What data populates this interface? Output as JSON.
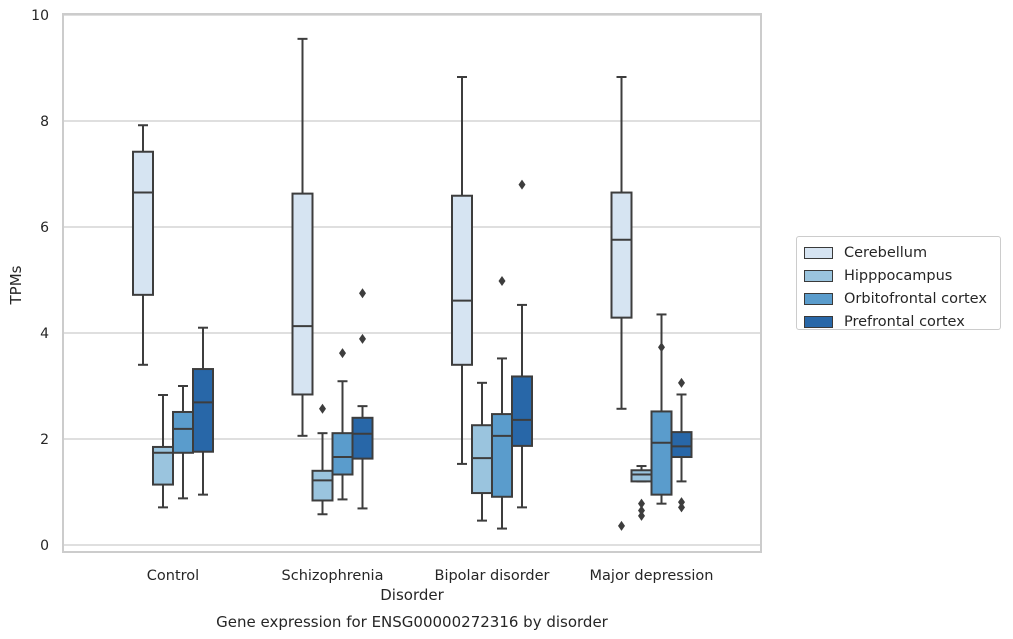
{
  "chart_data": {
    "type": "box",
    "title": "Gene expression for ENSG00000272316 by disorder",
    "xlabel": "Disorder",
    "ylabel": "TPMs",
    "ylim": [
      -0.15,
      10.05
    ],
    "y_ticks": [
      "0",
      "2",
      "4",
      "6",
      "8",
      "10"
    ],
    "categories": [
      "Control",
      "Schizophrenia",
      "Bipolar disorder",
      "Major depression"
    ],
    "grid": "horizontal",
    "legend_position": "right",
    "series": [
      {
        "name": "Cerebellum",
        "color": "#d6e4f2",
        "boxes": [
          {
            "whisker_low": 3.4,
            "q1": 4.72,
            "median": 6.65,
            "q3": 7.42,
            "whisker_high": 7.92,
            "outliers": []
          },
          {
            "whisker_low": 2.06,
            "q1": 2.84,
            "median": 4.13,
            "q3": 6.63,
            "whisker_high": 9.55,
            "outliers": []
          },
          {
            "whisker_low": 1.53,
            "q1": 3.4,
            "median": 4.61,
            "q3": 6.59,
            "whisker_high": 8.83,
            "outliers": []
          },
          {
            "whisker_low": 2.57,
            "q1": 4.29,
            "median": 5.76,
            "q3": 6.65,
            "whisker_high": 8.83,
            "outliers": [
              0.36
            ]
          }
        ]
      },
      {
        "name": "Hipppocampus",
        "color": "#9ac4de",
        "boxes": [
          {
            "whisker_low": 0.71,
            "q1": 1.14,
            "median": 1.74,
            "q3": 1.85,
            "whisker_high": 2.83,
            "outliers": []
          },
          {
            "whisker_low": 0.58,
            "q1": 0.84,
            "median": 1.22,
            "q3": 1.4,
            "whisker_high": 2.11,
            "outliers": [
              2.57
            ]
          },
          {
            "whisker_low": 0.46,
            "q1": 0.98,
            "median": 1.64,
            "q3": 2.26,
            "whisker_high": 3.06,
            "outliers": []
          },
          {
            "whisker_low": 1.2,
            "q1": 1.2,
            "median": 1.33,
            "q3": 1.41,
            "whisker_high": 1.49,
            "outliers": [
              0.55,
              0.65,
              0.78
            ]
          }
        ]
      },
      {
        "name": "Orbitofrontal cortex",
        "color": "#5a9ccc",
        "boxes": [
          {
            "whisker_low": 0.88,
            "q1": 1.74,
            "median": 2.19,
            "q3": 2.51,
            "whisker_high": 3.0,
            "outliers": []
          },
          {
            "whisker_low": 0.86,
            "q1": 1.33,
            "median": 1.66,
            "q3": 2.11,
            "whisker_high": 3.09,
            "outliers": [
              3.62
            ]
          },
          {
            "whisker_low": 0.31,
            "q1": 0.91,
            "median": 2.06,
            "q3": 2.47,
            "whisker_high": 3.52,
            "outliers": [
              4.98
            ]
          },
          {
            "whisker_low": 0.78,
            "q1": 0.95,
            "median": 1.93,
            "q3": 2.52,
            "whisker_high": 4.35,
            "outliers": [
              3.73
            ]
          }
        ]
      },
      {
        "name": "Prefrontal cortex",
        "color": "#2867a8",
        "boxes": [
          {
            "whisker_low": 0.95,
            "q1": 1.76,
            "median": 2.69,
            "q3": 3.32,
            "whisker_high": 4.1,
            "outliers": []
          },
          {
            "whisker_low": 0.69,
            "q1": 1.63,
            "median": 2.1,
            "q3": 2.4,
            "whisker_high": 2.62,
            "outliers": [
              3.89,
              4.75
            ]
          },
          {
            "whisker_low": 0.71,
            "q1": 1.87,
            "median": 2.36,
            "q3": 3.18,
            "whisker_high": 4.53,
            "outliers": [
              6.8
            ]
          },
          {
            "whisker_low": 1.2,
            "q1": 1.66,
            "median": 1.86,
            "q3": 2.13,
            "whisker_high": 2.84,
            "outliers": [
              0.71,
              0.81,
              3.06
            ]
          }
        ]
      }
    ]
  }
}
